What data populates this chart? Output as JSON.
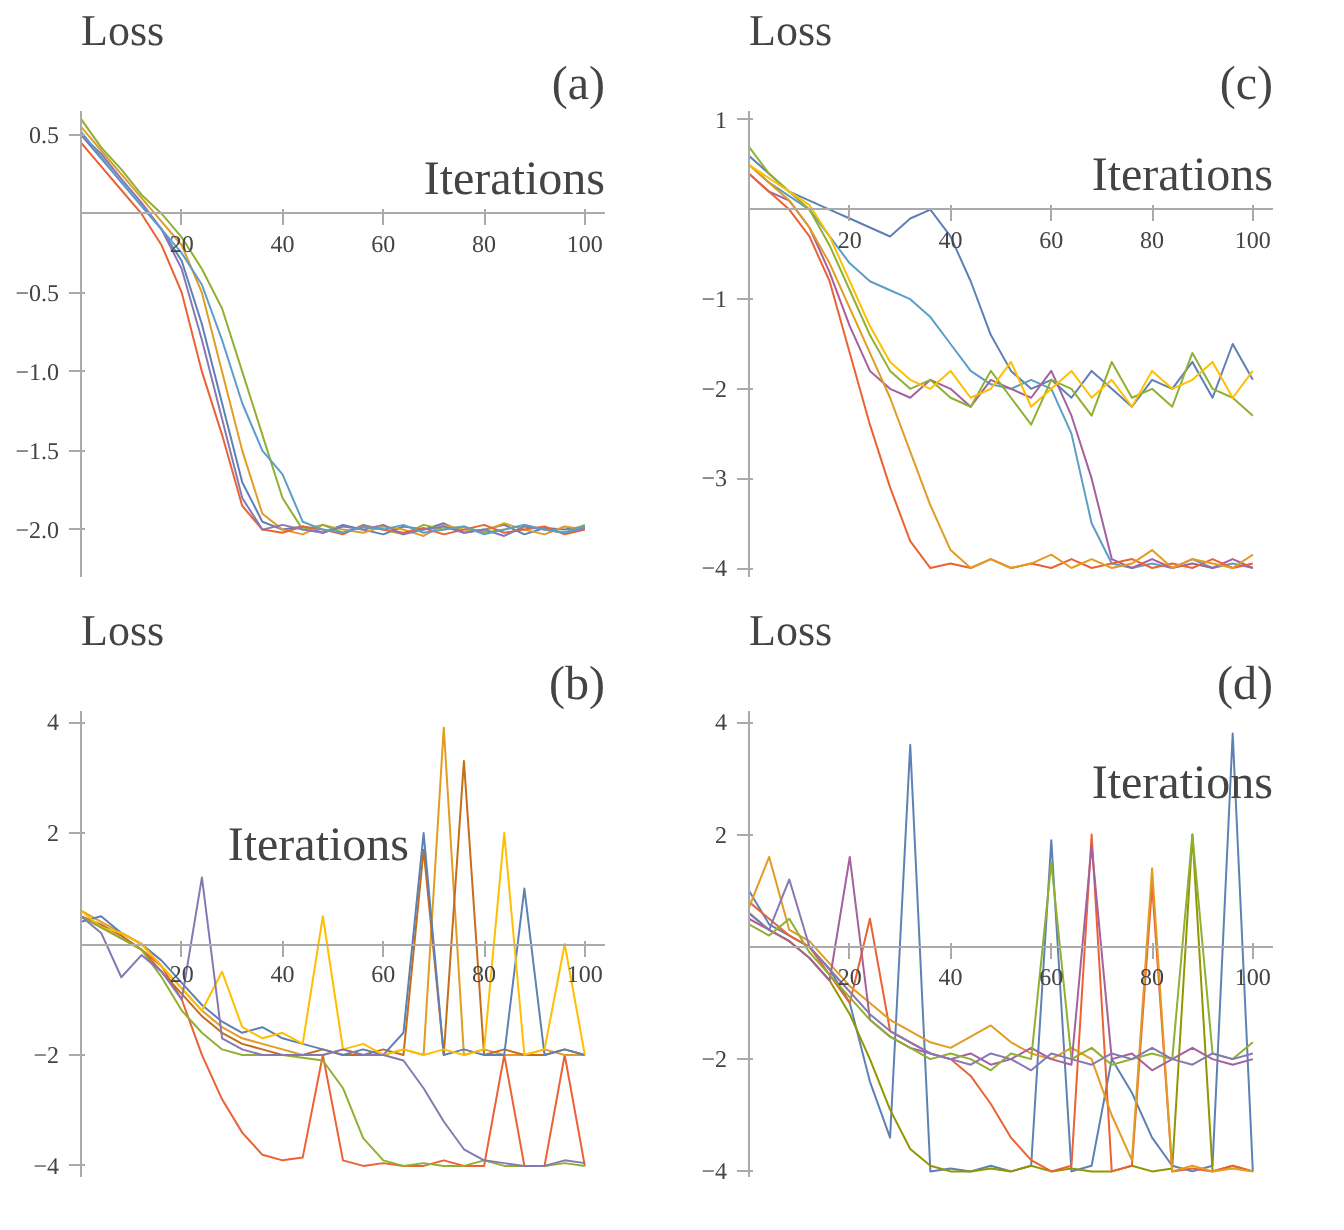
{
  "chart_data": [
    {
      "type": "line",
      "title": "(a)",
      "xlabel": "Iterations",
      "ylabel": "Loss",
      "grid": false,
      "marker": "none",
      "line_style": "solid",
      "x": [
        0,
        4,
        8,
        12,
        16,
        20,
        24,
        28,
        32,
        36,
        40,
        44,
        48,
        52,
        56,
        60,
        64,
        68,
        72,
        76,
        80,
        84,
        88,
        92,
        96,
        100
      ],
      "xlim": [
        0,
        104
      ],
      "xticks": [
        20,
        40,
        60,
        80,
        100
      ],
      "ylim": [
        -2.3,
        0.65
      ],
      "yticks": [
        0.5,
        {
          "value": -0.5,
          "label": "−0.5"
        },
        {
          "value": -1.0,
          "label": "−1.0"
        },
        {
          "value": -1.5,
          "label": "−1.5"
        },
        {
          "value": -2.0,
          "label": "−2.0"
        }
      ],
      "series": [
        {
          "color": "#5e81b5",
          "values": [
            0.5,
            0.35,
            0.2,
            0.05,
            -0.1,
            -0.3,
            -0.7,
            -1.2,
            -1.7,
            -1.95,
            -2.0,
            -1.98,
            -2.02,
            -1.97,
            -2.0,
            -2.03,
            -1.98,
            -2.0,
            -1.96,
            -2.02,
            -2.0,
            -1.97,
            -2.03,
            -1.99,
            -2.0,
            -1.98
          ]
        },
        {
          "color": "#e19c24",
          "values": [
            0.55,
            0.4,
            0.25,
            0.1,
            -0.05,
            -0.2,
            -0.5,
            -1.0,
            -1.5,
            -1.9,
            -2.0,
            -2.03,
            -1.97,
            -2.0,
            -2.02,
            -1.98,
            -2.0,
            -2.04,
            -1.97,
            -2.0,
            -2.01,
            -1.96,
            -2.0,
            -2.03,
            -1.98,
            -2.0
          ]
        },
        {
          "color": "#8fb032",
          "values": [
            0.6,
            0.42,
            0.28,
            0.12,
            0.0,
            -0.15,
            -0.35,
            -0.6,
            -1.0,
            -1.4,
            -1.8,
            -2.0,
            -1.97,
            -2.02,
            -1.98,
            -2.0,
            -2.03,
            -1.97,
            -2.0,
            -1.98,
            -2.02,
            -2.0,
            -1.97,
            -2.0,
            -2.02,
            -1.97
          ]
        },
        {
          "color": "#eb6235",
          "values": [
            0.45,
            0.3,
            0.15,
            0.0,
            -0.2,
            -0.5,
            -1.0,
            -1.4,
            -1.85,
            -2.0,
            -2.02,
            -1.98,
            -2.0,
            -2.03,
            -1.97,
            -2.0,
            -2.02,
            -1.99,
            -2.03,
            -2.0,
            -1.97,
            -2.02,
            -2.0,
            -1.98,
            -2.03,
            -2.0
          ]
        },
        {
          "color": "#8778b3",
          "values": [
            0.5,
            0.38,
            0.22,
            0.07,
            -0.1,
            -0.35,
            -0.8,
            -1.3,
            -1.8,
            -2.0,
            -1.97,
            -2.0,
            -2.02,
            -1.98,
            -2.0,
            -1.97,
            -2.03,
            -2.0,
            -1.98,
            -2.02,
            -2.0,
            -2.04,
            -1.98,
            -2.0,
            -2.02,
            -1.99
          ]
        },
        {
          "color": "#5d9ec7",
          "values": [
            0.52,
            0.36,
            0.2,
            0.05,
            -0.1,
            -0.25,
            -0.45,
            -0.8,
            -1.2,
            -1.5,
            -1.65,
            -1.95,
            -2.0,
            -2.02,
            -1.98,
            -2.0,
            -1.97,
            -2.02,
            -2.0,
            -1.98,
            -2.03,
            -2.0,
            -1.97,
            -2.0,
            -2.02,
            -1.98
          ]
        }
      ]
    },
    {
      "type": "line",
      "title": "(c)",
      "xlabel": "Iterations",
      "ylabel": "Loss",
      "grid": false,
      "marker": "none",
      "line_style": "solid",
      "x": [
        0,
        4,
        8,
        12,
        16,
        20,
        24,
        28,
        32,
        36,
        40,
        44,
        48,
        52,
        56,
        60,
        64,
        68,
        72,
        76,
        80,
        84,
        88,
        92,
        96,
        100
      ],
      "xlim": [
        0,
        104
      ],
      "xticks": [
        20,
        40,
        60,
        80,
        100
      ],
      "ylim": [
        -4.1,
        1.1
      ],
      "yticks": [
        1,
        {
          "value": -1,
          "label": "−1"
        },
        {
          "value": -2,
          "label": "−2"
        },
        {
          "value": -3,
          "label": "−3"
        },
        {
          "value": -4,
          "label": "−4"
        }
      ],
      "series": [
        {
          "color": "#5e81b5",
          "values": [
            0.6,
            0.4,
            0.2,
            0.1,
            0.0,
            -0.1,
            -0.2,
            -0.3,
            -0.1,
            0.0,
            -0.3,
            -0.8,
            -1.4,
            -1.8,
            -2.0,
            -1.9,
            -2.1,
            -1.8,
            -2.0,
            -2.2,
            -1.9,
            -2.0,
            -1.7,
            -2.1,
            -1.5,
            -1.9
          ]
        },
        {
          "color": "#5d9ec7",
          "values": [
            0.5,
            0.3,
            0.15,
            0.0,
            -0.3,
            -0.6,
            -0.8,
            -0.9,
            -1.0,
            -1.2,
            -1.5,
            -1.8,
            -1.95,
            -2.0,
            -1.9,
            -2.0,
            -2.5,
            -3.5,
            -3.95,
            -4.0,
            -3.95,
            -4.0,
            -3.9,
            -4.0,
            -3.95,
            -4.0
          ]
        },
        {
          "color": "#a5609d",
          "values": [
            0.4,
            0.2,
            0.1,
            -0.2,
            -0.7,
            -1.3,
            -1.8,
            -2.0,
            -2.1,
            -1.9,
            -2.0,
            -2.2,
            -1.9,
            -2.0,
            -2.1,
            -1.8,
            -2.3,
            -3.0,
            -3.9,
            -4.0,
            -3.9,
            -4.0,
            -3.95,
            -4.0,
            -3.9,
            -4.0
          ]
        },
        {
          "color": "#eb6235",
          "values": [
            0.4,
            0.2,
            0.0,
            -0.3,
            -0.8,
            -1.6,
            -2.4,
            -3.1,
            -3.7,
            -4.0,
            -3.95,
            -4.0,
            -3.9,
            -4.0,
            -3.95,
            -4.0,
            -3.9,
            -4.0,
            -3.95,
            -3.9,
            -4.0,
            -3.95,
            -4.0,
            -3.9,
            -4.0,
            -3.95
          ]
        },
        {
          "color": "#e19c24",
          "values": [
            0.5,
            0.3,
            0.1,
            -0.2,
            -0.6,
            -1.1,
            -1.6,
            -2.1,
            -2.7,
            -3.3,
            -3.8,
            -4.0,
            -3.9,
            -4.0,
            -3.95,
            -3.85,
            -4.0,
            -3.9,
            -4.0,
            -3.95,
            -3.8,
            -4.0,
            -3.9,
            -3.95,
            -4.0,
            -3.85
          ]
        },
        {
          "color": "#8fb032",
          "values": [
            0.7,
            0.4,
            0.2,
            0.0,
            -0.4,
            -0.9,
            -1.4,
            -1.8,
            -2.0,
            -1.9,
            -2.1,
            -2.2,
            -1.8,
            -2.1,
            -2.4,
            -1.9,
            -2.0,
            -2.3,
            -1.7,
            -2.1,
            -2.0,
            -2.2,
            -1.6,
            -2.0,
            -2.1,
            -2.3
          ]
        },
        {
          "color": "#ffbf00",
          "values": [
            0.5,
            0.35,
            0.2,
            0.05,
            -0.3,
            -0.8,
            -1.3,
            -1.7,
            -1.9,
            -2.0,
            -1.8,
            -2.1,
            -2.0,
            -1.7,
            -2.2,
            -2.0,
            -1.8,
            -2.1,
            -1.9,
            -2.2,
            -1.8,
            -2.0,
            -1.9,
            -1.7,
            -2.1,
            -1.8
          ]
        }
      ]
    },
    {
      "type": "line",
      "title": "(b)",
      "xlabel": "Iterations",
      "ylabel": "Loss",
      "grid": false,
      "marker": "none",
      "line_style": "solid",
      "x": [
        0,
        4,
        8,
        12,
        16,
        20,
        24,
        28,
        32,
        36,
        40,
        44,
        48,
        52,
        56,
        60,
        64,
        68,
        72,
        76,
        80,
        84,
        88,
        92,
        96,
        100
      ],
      "xlim": [
        0,
        104
      ],
      "xticks": [
        20,
        40,
        60,
        80,
        100
      ],
      "ylim": [
        -4.2,
        4.2
      ],
      "yticks": [
        4,
        2,
        {
          "value": -2,
          "label": "−2"
        },
        {
          "value": -4,
          "label": "−4"
        }
      ],
      "series": [
        {
          "color": "#eb6235",
          "values": [
            0.5,
            0.3,
            0.1,
            -0.1,
            -0.4,
            -1.0,
            -2.0,
            -2.8,
            -3.4,
            -3.8,
            -3.9,
            -3.85,
            -2.0,
            -3.9,
            -4.0,
            -3.95,
            -4.0,
            -4.0,
            -3.9,
            -4.0,
            -4.0,
            -2.0,
            -4.0,
            -4.0,
            -2.0,
            -4.0
          ]
        },
        {
          "color": "#e19c24",
          "values": [
            0.6,
            0.4,
            0.2,
            0.0,
            -0.4,
            -0.8,
            -1.2,
            -1.5,
            -1.7,
            -1.8,
            -1.9,
            -2.0,
            -2.0,
            -1.9,
            -2.0,
            -2.0,
            -1.9,
            -2.0,
            3.9,
            -2.0,
            -1.9,
            -2.0,
            -2.0,
            -1.9,
            -2.0,
            -2.0
          ]
        },
        {
          "color": "#c56e1a",
          "values": [
            0.5,
            0.35,
            0.15,
            -0.1,
            -0.5,
            -0.9,
            -1.3,
            -1.6,
            -1.8,
            -1.9,
            -2.0,
            -2.0,
            -1.9,
            -2.0,
            -2.0,
            -1.9,
            -2.0,
            1.7,
            -2.0,
            3.3,
            -2.0,
            -1.9,
            -2.0,
            -2.0,
            -1.9,
            -2.0
          ]
        },
        {
          "color": "#5e81b5",
          "values": [
            0.4,
            0.5,
            0.2,
            0.0,
            -0.3,
            -0.7,
            -1.1,
            -1.4,
            -1.6,
            -1.5,
            -1.7,
            -1.8,
            -1.9,
            -2.0,
            -1.9,
            -2.0,
            -1.6,
            2.0,
            -2.0,
            -1.9,
            -2.0,
            -2.0,
            1.0,
            -2.0,
            -1.9,
            -2.0
          ]
        },
        {
          "color": "#ffbf00",
          "values": [
            0.6,
            0.3,
            0.2,
            0.0,
            -0.4,
            -0.8,
            -1.2,
            -0.5,
            -1.5,
            -1.7,
            -1.6,
            -1.8,
            0.5,
            -1.9,
            -1.8,
            -2.0,
            -1.9,
            -2.0,
            -1.9,
            -2.0,
            -1.9,
            2.0,
            -2.0,
            -1.9,
            0.0,
            -2.0
          ]
        },
        {
          "color": "#8fb032",
          "values": [
            0.5,
            0.3,
            0.1,
            -0.1,
            -0.6,
            -1.2,
            -1.6,
            -1.9,
            -2.0,
            -2.0,
            -2.0,
            -2.05,
            -2.1,
            -2.6,
            -3.5,
            -3.9,
            -4.0,
            -3.95,
            -4.0,
            -4.0,
            -3.9,
            -4.0,
            -4.0,
            -4.0,
            -3.95,
            -4.0
          ]
        },
        {
          "color": "#8778b3",
          "values": [
            0.5,
            0.2,
            -0.6,
            -0.2,
            -0.5,
            -1.0,
            1.2,
            -1.7,
            -1.9,
            -2.0,
            -2.0,
            -2.0,
            -2.0,
            -1.9,
            -2.0,
            -2.0,
            -2.1,
            -2.6,
            -3.2,
            -3.7,
            -3.9,
            -3.95,
            -4.0,
            -4.0,
            -3.9,
            -3.95
          ]
        }
      ]
    },
    {
      "type": "line",
      "title": "(d)",
      "xlabel": "Iterations",
      "ylabel": "Loss",
      "grid": false,
      "marker": "none",
      "line_style": "solid",
      "x": [
        0,
        4,
        8,
        12,
        16,
        20,
        24,
        28,
        32,
        36,
        40,
        44,
        48,
        52,
        56,
        60,
        64,
        68,
        72,
        76,
        80,
        84,
        88,
        92,
        96,
        100
      ],
      "xlim": [
        0,
        104
      ],
      "xticks": [
        20,
        40,
        60,
        80,
        100
      ],
      "ylim": [
        -4.1,
        4.2
      ],
      "yticks": [
        4,
        2,
        {
          "value": -2,
          "label": "−2"
        },
        {
          "value": -4,
          "label": "−4"
        }
      ],
      "series": [
        {
          "color": "#5e81b5",
          "values": [
            1.0,
            0.4,
            0.2,
            0.0,
            -0.4,
            -1.0,
            -2.4,
            -3.4,
            3.6,
            -4.0,
            -3.95,
            -4.0,
            -3.9,
            -4.0,
            -3.9,
            1.9,
            -4.0,
            -3.9,
            -2.0,
            -2.6,
            -3.4,
            -3.9,
            -4.0,
            -3.9,
            3.8,
            -4.0
          ]
        },
        {
          "color": "#929600",
          "values": [
            0.6,
            0.3,
            0.1,
            -0.2,
            -0.6,
            -1.2,
            -2.0,
            -2.9,
            -3.6,
            -3.9,
            -4.0,
            -4.0,
            -3.95,
            -4.0,
            -3.9,
            -4.0,
            -3.95,
            -4.0,
            -4.0,
            -3.9,
            -4.0,
            -3.95,
            2.0,
            -4.0,
            -3.9,
            -4.0
          ]
        },
        {
          "color": "#eb6235",
          "values": [
            0.8,
            0.5,
            0.2,
            0.0,
            -0.5,
            -1.0,
            0.5,
            -1.5,
            -1.7,
            -1.9,
            -2.0,
            -2.3,
            -2.8,
            -3.4,
            -3.8,
            -4.0,
            -3.9,
            2.0,
            -4.0,
            -3.9,
            1.1,
            -4.0,
            -3.95,
            -4.0,
            -3.9,
            -4.0
          ]
        },
        {
          "color": "#e19c24",
          "values": [
            0.7,
            1.6,
            0.3,
            0.1,
            -0.3,
            -0.7,
            -1.0,
            -1.3,
            -1.5,
            -1.7,
            -1.8,
            -1.6,
            -1.4,
            -1.7,
            -1.9,
            -2.0,
            -1.8,
            -2.0,
            -3.0,
            -3.8,
            1.4,
            -4.0,
            -3.9,
            -4.0,
            -3.95,
            -4.0
          ]
        },
        {
          "color": "#a5609d",
          "values": [
            0.5,
            0.3,
            0.1,
            -0.2,
            -0.6,
            1.6,
            -1.3,
            -1.6,
            -1.8,
            -1.9,
            -2.0,
            -1.9,
            -2.1,
            -2.0,
            -1.8,
            -2.0,
            -2.1,
            1.8,
            -2.0,
            -1.9,
            -2.2,
            -2.0,
            -1.8,
            -2.0,
            -2.1,
            -2.0
          ]
        },
        {
          "color": "#8fb032",
          "values": [
            0.4,
            0.2,
            0.5,
            -0.1,
            -0.5,
            -0.9,
            -1.3,
            -1.6,
            -1.8,
            -2.0,
            -1.9,
            -2.0,
            -2.2,
            -1.9,
            -2.0,
            1.5,
            -2.0,
            -1.8,
            -2.1,
            -2.0,
            -1.9,
            -2.0,
            2.0,
            -1.9,
            -2.0,
            -1.7
          ]
        },
        {
          "color": "#8778b3",
          "values": [
            0.6,
            0.3,
            1.2,
            0.0,
            -0.4,
            -0.8,
            -1.2,
            -1.5,
            -1.7,
            -1.9,
            -2.0,
            -2.1,
            -1.9,
            -2.0,
            -2.2,
            -1.9,
            -2.0,
            -2.1,
            -1.9,
            -2.0,
            -1.8,
            -2.0,
            -2.1,
            -1.9,
            -2.0,
            -1.9
          ]
        }
      ]
    }
  ]
}
